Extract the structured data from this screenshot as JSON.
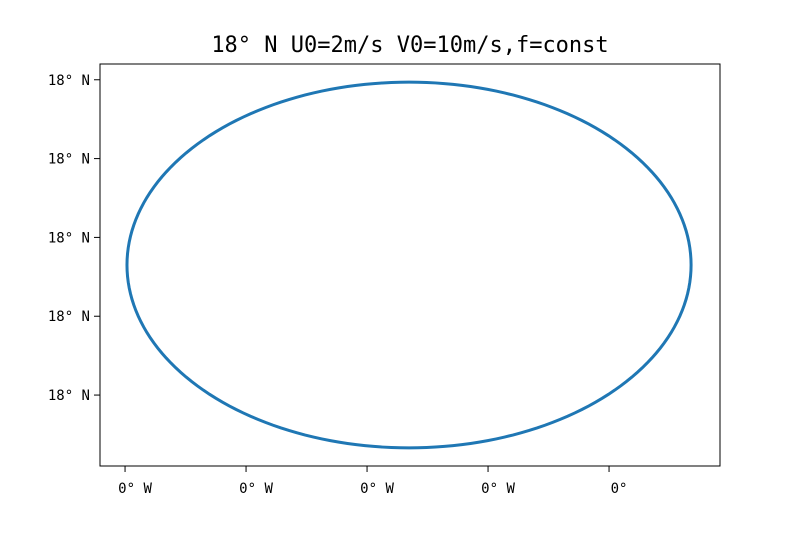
{
  "chart_data": {
    "type": "line",
    "title": "18° N U0=2m/s V0=10m/s,f=const",
    "xlabel": "",
    "ylabel": "",
    "x_tick_labels": [
      "0° W",
      "0° W",
      "0° W",
      "0° W",
      "0°"
    ],
    "y_tick_labels": [
      "18° N",
      "18° N",
      "18° N",
      "18° N",
      "18° N"
    ],
    "xlim": [
      -0.207,
      4.917
    ],
    "ylim": [
      -0.9,
      4.2
    ],
    "grid": false,
    "series": [
      {
        "shape": "closed ellipse trajectory",
        "center": [
          2.347,
          1.65
        ],
        "radius_x": 2.331,
        "radius_y": 2.32,
        "color": "#1f77b4"
      }
    ]
  }
}
